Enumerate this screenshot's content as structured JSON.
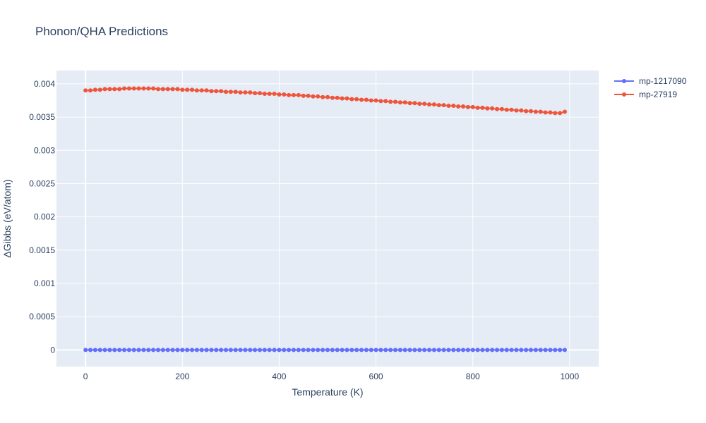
{
  "chart_data": {
    "type": "scatter",
    "title": "Phonon/QHA Predictions",
    "xlabel": "Temperature (K)",
    "ylabel": "ΔGibbs (eV/atom)",
    "xlim": [
      -60,
      1060
    ],
    "ylim": [
      -0.00025,
      0.0042
    ],
    "x_ticks": [
      0,
      200,
      400,
      600,
      800,
      1000
    ],
    "x_tick_labels": [
      "0",
      "200",
      "400",
      "600",
      "800",
      "1000"
    ],
    "y_ticks": [
      0,
      0.0005,
      0.001,
      0.0015,
      0.002,
      0.0025,
      0.003,
      0.0035,
      0.004
    ],
    "y_tick_labels": [
      "0",
      "0.0005",
      "0.001",
      "0.0015",
      "0.002",
      "0.0025",
      "0.003",
      "0.0035",
      "0.004"
    ],
    "grid": true,
    "legend_position": "top-right",
    "mode": "lines+markers",
    "x": [
      0,
      10,
      20,
      30,
      40,
      50,
      60,
      70,
      80,
      90,
      100,
      110,
      120,
      130,
      140,
      150,
      160,
      170,
      180,
      190,
      200,
      210,
      220,
      230,
      240,
      250,
      260,
      270,
      280,
      290,
      300,
      310,
      320,
      330,
      340,
      350,
      360,
      370,
      380,
      390,
      400,
      410,
      420,
      430,
      440,
      450,
      460,
      470,
      480,
      490,
      500,
      510,
      520,
      530,
      540,
      550,
      560,
      570,
      580,
      590,
      600,
      610,
      620,
      630,
      640,
      650,
      660,
      670,
      680,
      690,
      700,
      710,
      720,
      730,
      740,
      750,
      760,
      770,
      780,
      790,
      800,
      810,
      820,
      830,
      840,
      850,
      860,
      870,
      880,
      890,
      900,
      910,
      920,
      930,
      940,
      950,
      960,
      970,
      980,
      990
    ],
    "series": [
      {
        "name": "mp-1217090",
        "color": "#636efa",
        "values": [
          0,
          0,
          0,
          0,
          0,
          0,
          0,
          0,
          0,
          0,
          0,
          0,
          0,
          0,
          0,
          0,
          0,
          0,
          0,
          0,
          0,
          0,
          0,
          0,
          0,
          0,
          0,
          0,
          0,
          0,
          0,
          0,
          0,
          0,
          0,
          0,
          0,
          0,
          0,
          0,
          0,
          0,
          0,
          0,
          0,
          0,
          0,
          0,
          0,
          0,
          0,
          0,
          0,
          0,
          0,
          0,
          0,
          0,
          0,
          0,
          0,
          0,
          0,
          0,
          0,
          0,
          0,
          0,
          0,
          0,
          0,
          0,
          0,
          0,
          0,
          0,
          0,
          0,
          0,
          0,
          0,
          0,
          0,
          0,
          0,
          0,
          0,
          0,
          0,
          0,
          0,
          0,
          0,
          0,
          0,
          0,
          0,
          0,
          0,
          0
        ]
      },
      {
        "name": "mp-27919",
        "color": "#ef553b",
        "values": [
          0.0039,
          0.0039,
          0.00391,
          0.00391,
          0.00392,
          0.00392,
          0.00392,
          0.00392,
          0.00393,
          0.00393,
          0.00393,
          0.00393,
          0.00393,
          0.00393,
          0.00393,
          0.00392,
          0.00392,
          0.00392,
          0.00392,
          0.00392,
          0.00391,
          0.00391,
          0.00391,
          0.0039,
          0.0039,
          0.0039,
          0.00389,
          0.00389,
          0.00389,
          0.00388,
          0.00388,
          0.00388,
          0.00387,
          0.00387,
          0.00387,
          0.00386,
          0.00386,
          0.00385,
          0.00385,
          0.00385,
          0.00384,
          0.00384,
          0.00383,
          0.00383,
          0.00383,
          0.00382,
          0.00382,
          0.00381,
          0.00381,
          0.0038,
          0.0038,
          0.00379,
          0.00379,
          0.00378,
          0.00378,
          0.00377,
          0.00377,
          0.00376,
          0.00376,
          0.00375,
          0.00375,
          0.00374,
          0.00374,
          0.00373,
          0.00373,
          0.00372,
          0.00372,
          0.00371,
          0.00371,
          0.0037,
          0.0037,
          0.00369,
          0.00369,
          0.00368,
          0.00368,
          0.00367,
          0.00367,
          0.00366,
          0.00366,
          0.00365,
          0.00365,
          0.00364,
          0.00364,
          0.00363,
          0.00363,
          0.00362,
          0.00362,
          0.00361,
          0.00361,
          0.0036,
          0.0036,
          0.00359,
          0.00359,
          0.00358,
          0.00358,
          0.00357,
          0.00357,
          0.00356,
          0.00356,
          0.00358
        ]
      }
    ]
  },
  "colors": {
    "plot_background": "#e5ecf6",
    "grid": "#ffffff",
    "text": "#2a3f5f"
  }
}
